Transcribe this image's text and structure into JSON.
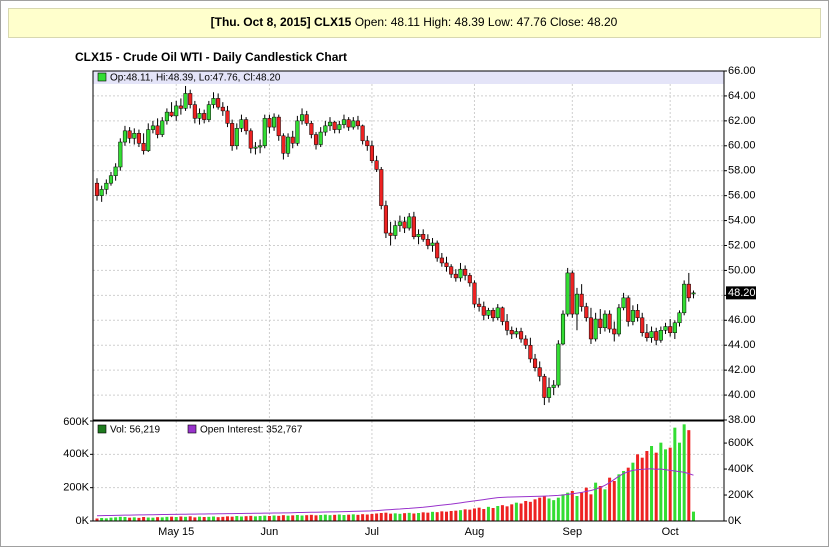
{
  "header": {
    "date_symbol": "[Thu. Oct 8, 2015] CLX15",
    "quote": "Open: 48.11 High: 48.39 Low: 47.76 Close: 48.20"
  },
  "chart_data": [
    {
      "type": "candlestick",
      "title": "CLX15 - Crude Oil WTI - Daily Candlestick Chart",
      "legend": "Op:48.11, Hi:48.39, Lo:47.76, Cl:48.20",
      "up_color": "#33dd33",
      "down_color": "#ee2222",
      "open": [
        57.0,
        56.0,
        56.5,
        57.0,
        57.6,
        58.3,
        60.3,
        61.2,
        60.6,
        61.0,
        60.2,
        59.6,
        61.3,
        61.6,
        60.9,
        62.0,
        62.7,
        62.4,
        63.2,
        63.0,
        64.2,
        63.3,
        62.2,
        62.6,
        62.1,
        63.3,
        63.8,
        63.1,
        62.8,
        61.8,
        60.0,
        61.4,
        62.1,
        61.2,
        59.8,
        59.9,
        60.0,
        62.2,
        61.5,
        62.3,
        60.8,
        59.4,
        60.7,
        60.2,
        62.0,
        62.5,
        61.8,
        60.9,
        60.1,
        61.1,
        61.6,
        61.9,
        61.3,
        61.7,
        62.1,
        61.5,
        62.0,
        61.6,
        60.4,
        60.0,
        58.8,
        58.1,
        55.2,
        53.0,
        52.8,
        53.6,
        53.9,
        53.4,
        54.3,
        52.7,
        52.9,
        52.5,
        52.0,
        52.2,
        51.0,
        50.6,
        50.3,
        49.7,
        49.4,
        50.1,
        49.6,
        49.0,
        47.3,
        47.1,
        46.4,
        46.8,
        46.2,
        47.0,
        45.9,
        45.2,
        44.9,
        45.1,
        44.5,
        44.0,
        42.9,
        42.2,
        41.5,
        39.8,
        40.6,
        40.8,
        44.1,
        46.5,
        49.8,
        46.5,
        48.1,
        47.1,
        46.2,
        44.5,
        46.1,
        45.4,
        46.5,
        45.3,
        44.9,
        47.0,
        47.8,
        45.9,
        46.8,
        46.2,
        45.0,
        44.6,
        45.1,
        44.4,
        45.2,
        45.5,
        45.0,
        45.8,
        46.6,
        48.9,
        48.11
      ],
      "high": [
        57.4,
        56.8,
        57.3,
        57.9,
        58.6,
        60.6,
        61.6,
        61.5,
        61.4,
        61.3,
        61.0,
        61.8,
        62.0,
        62.2,
        62.3,
        63.0,
        63.5,
        63.6,
        63.8,
        64.8,
        64.5,
        63.6,
        63.0,
        62.9,
        63.6,
        64.3,
        64.2,
        63.5,
        63.2,
        62.1,
        61.8,
        62.5,
        62.3,
        61.4,
        60.3,
        60.5,
        62.5,
        62.5,
        62.6,
        62.5,
        61.0,
        61.0,
        61.2,
        62.4,
        63.0,
        62.8,
        62.0,
        61.1,
        61.5,
        62.0,
        62.3,
        62.0,
        62.0,
        62.5,
        62.3,
        62.3,
        62.4,
        61.7,
        60.8,
        60.4,
        59.2,
        58.3,
        55.6,
        53.9,
        54.0,
        54.4,
        54.3,
        54.6,
        54.7,
        53.3,
        53.3,
        52.9,
        52.6,
        52.4,
        51.4,
        51.1,
        50.5,
        50.1,
        50.6,
        50.4,
        49.8,
        49.2,
        47.8,
        47.5,
        47.0,
        47.0,
        47.3,
        47.1,
        46.5,
        45.5,
        45.4,
        45.4,
        44.8,
        44.6,
        43.3,
        42.7,
        41.7,
        41.4,
        41.2,
        44.4,
        46.8,
        50.2,
        50.0,
        48.6,
        48.9,
        47.4,
        47.0,
        46.6,
        46.9,
        46.8,
        46.8,
        45.9,
        47.3,
        48.2,
        48.0,
        47.2,
        47.3,
        46.6,
        45.7,
        45.5,
        45.4,
        45.5,
        45.8,
        46.1,
        46.0,
        46.8,
        49.2,
        49.8,
        48.39
      ],
      "low": [
        55.6,
        55.5,
        56.1,
        56.8,
        57.2,
        58.0,
        60.0,
        60.2,
        60.1,
        59.9,
        59.3,
        59.5,
        61.0,
        60.6,
        60.7,
        61.7,
        62.3,
        62.0,
        62.5,
        62.8,
        63.0,
        61.8,
        61.7,
        61.8,
        61.9,
        63.0,
        62.9,
        62.4,
        61.5,
        59.6,
        59.7,
        61.1,
        60.9,
        59.4,
        59.3,
        59.4,
        59.8,
        61.0,
        61.2,
        60.4,
        58.9,
        59.1,
        59.8,
        60.0,
        61.7,
        61.6,
        60.6,
        59.7,
        59.9,
        60.8,
        61.2,
        61.0,
        61.0,
        61.4,
        61.2,
        61.3,
        61.3,
        60.1,
        59.6,
        58.6,
        57.9,
        54.9,
        52.6,
        52.0,
        52.5,
        53.1,
        53.0,
        53.2,
        52.5,
        52.1,
        52.3,
        51.7,
        51.5,
        50.7,
        50.3,
        49.9,
        49.4,
        49.1,
        49.1,
        49.2,
        48.7,
        47.0,
        46.7,
        46.0,
        46.1,
        45.9,
        46.0,
        45.6,
        44.8,
        44.5,
        44.6,
        44.2,
        43.7,
        42.6,
        41.9,
        41.1,
        39.2,
        39.4,
        40.0,
        40.6,
        44.0,
        46.3,
        46.2,
        45.2,
        46.7,
        45.9,
        44.1,
        44.3,
        44.9,
        45.1,
        45.0,
        44.3,
        44.7,
        46.8,
        45.5,
        45.6,
        45.9,
        44.7,
        44.3,
        44.2,
        44.0,
        44.2,
        44.9,
        44.7,
        44.5,
        45.5,
        46.4,
        47.5,
        47.76
      ],
      "close": [
        56.0,
        56.5,
        57.0,
        57.6,
        58.3,
        60.3,
        61.2,
        60.6,
        61.0,
        60.2,
        59.6,
        61.3,
        61.6,
        60.9,
        62.0,
        62.7,
        62.4,
        63.2,
        63.0,
        64.2,
        63.3,
        62.2,
        62.6,
        62.1,
        63.3,
        63.8,
        63.1,
        62.8,
        61.8,
        60.0,
        61.4,
        62.1,
        61.2,
        59.8,
        59.9,
        60.0,
        62.2,
        61.5,
        62.3,
        60.8,
        59.4,
        60.7,
        60.2,
        62.0,
        62.5,
        61.8,
        60.9,
        60.1,
        61.1,
        61.6,
        61.9,
        61.3,
        61.7,
        62.1,
        61.5,
        62.0,
        61.6,
        60.4,
        60.0,
        58.8,
        58.1,
        55.2,
        53.0,
        52.8,
        53.6,
        53.9,
        53.4,
        54.3,
        52.7,
        52.9,
        52.5,
        52.0,
        52.2,
        51.0,
        50.6,
        50.3,
        49.7,
        49.4,
        50.1,
        49.6,
        49.0,
        47.3,
        47.1,
        46.4,
        46.8,
        46.2,
        47.0,
        45.9,
        45.2,
        44.9,
        45.1,
        44.5,
        44.0,
        42.9,
        42.2,
        41.5,
        39.8,
        40.6,
        40.8,
        44.1,
        46.5,
        49.8,
        46.5,
        48.1,
        47.1,
        46.2,
        44.5,
        46.1,
        45.4,
        46.5,
        45.3,
        44.9,
        47.0,
        47.8,
        45.9,
        46.8,
        46.2,
        45.0,
        44.6,
        45.1,
        44.4,
        45.2,
        45.5,
        45.0,
        45.8,
        46.6,
        48.9,
        47.8,
        48.2
      ],
      "ylim": [
        38,
        66
      ],
      "yticks": [
        {
          "value": 38,
          "label": "38.00"
        },
        {
          "value": 40,
          "label": "40.00"
        },
        {
          "value": 42,
          "label": "42.00"
        },
        {
          "value": 44,
          "label": "44.00"
        },
        {
          "value": 46,
          "label": "46.00"
        },
        {
          "value": 48,
          "label": "48.00"
        },
        {
          "value": 50,
          "label": "50.00"
        },
        {
          "value": 52,
          "label": "52.00"
        },
        {
          "value": 54,
          "label": "54.00"
        },
        {
          "value": 56,
          "label": "56.00"
        },
        {
          "value": 58,
          "label": "58.00"
        },
        {
          "value": 60,
          "label": "60.00"
        },
        {
          "value": 62,
          "label": "62.00"
        },
        {
          "value": 64,
          "label": "64.00"
        },
        {
          "value": 66,
          "label": "66.00"
        }
      ],
      "last_label": {
        "value": 48.2,
        "label": "48.20"
      },
      "grid": true
    },
    {
      "type": "bar",
      "categories": [
        null,
        null,
        null,
        null,
        null,
        null,
        null,
        null,
        null,
        null,
        null,
        null,
        null,
        null,
        null,
        null,
        null,
        "May 15",
        null,
        null,
        null,
        null,
        null,
        null,
        null,
        null,
        null,
        null,
        null,
        null,
        null,
        null,
        null,
        null,
        null,
        null,
        null,
        "Jun",
        null,
        null,
        null,
        null,
        null,
        null,
        null,
        null,
        null,
        null,
        null,
        null,
        null,
        null,
        null,
        null,
        null,
        null,
        null,
        null,
        null,
        "Jul",
        null,
        null,
        null,
        null,
        null,
        null,
        null,
        null,
        null,
        null,
        null,
        null,
        null,
        null,
        null,
        null,
        null,
        null,
        null,
        null,
        null,
        "Aug",
        null,
        null,
        null,
        null,
        null,
        null,
        null,
        null,
        null,
        null,
        null,
        null,
        null,
        null,
        null,
        null,
        null,
        null,
        null,
        null,
        "Sep",
        null,
        null,
        null,
        null,
        null,
        null,
        null,
        null,
        null,
        null,
        null,
        null,
        null,
        null,
        null,
        null,
        null,
        null,
        null,
        null,
        "Oct",
        null,
        null,
        null,
        null,
        null
      ],
      "series": [
        {
          "name": "Vol: 56,219",
          "color": "#1e7b1e",
          "values": [
            15000,
            18000,
            16000,
            20000,
            22000,
            25000,
            24000,
            20000,
            22000,
            19000,
            24000,
            21000,
            20000,
            23000,
            22000,
            25000,
            26000,
            24000,
            27000,
            25000,
            28000,
            22000,
            26000,
            24000,
            25000,
            27000,
            23000,
            25000,
            28000,
            26000,
            30000,
            27000,
            29000,
            31000,
            28000,
            30000,
            32000,
            30000,
            33000,
            31000,
            35000,
            32000,
            34000,
            36000,
            33000,
            35000,
            37000,
            34000,
            36000,
            38000,
            35000,
            37000,
            39000,
            36000,
            38000,
            40000,
            37000,
            41000,
            39000,
            42000,
            45000,
            48000,
            50000,
            44000,
            46000,
            43000,
            47000,
            49000,
            45000,
            48000,
            52000,
            50000,
            55000,
            53000,
            58000,
            56000,
            60000,
            62000,
            65000,
            70000,
            68000,
            75000,
            80000,
            72000,
            85000,
            78000,
            90000,
            95000,
            88000,
            100000,
            110000,
            105000,
            120000,
            115000,
            130000,
            140000,
            150000,
            135000,
            125000,
            140000,
            160000,
            170000,
            180000,
            150000,
            170000,
            200000,
            160000,
            230000,
            210000,
            190000,
            260000,
            240000,
            280000,
            300000,
            320000,
            350000,
            400000,
            380000,
            420000,
            450000,
            410000,
            470000,
            430000,
            440000,
            560000,
            470000,
            580000,
            545000,
            56219
          ]
        },
        {
          "name": "Open Interest: 352,767",
          "color": "#9933cc",
          "axis": "y2",
          "values": [
            40000,
            41000,
            42000,
            42000,
            43000,
            44000,
            45000,
            45000,
            46000,
            47000,
            47000,
            48000,
            48000,
            49000,
            50000,
            50000,
            51000,
            51000,
            52000,
            52000,
            53000,
            53000,
            54000,
            54000,
            55000,
            55000,
            56000,
            56000,
            57000,
            57000,
            58000,
            58000,
            59000,
            59000,
            60000,
            60000,
            61000,
            61000,
            62000,
            62000,
            63000,
            63000,
            64000,
            65000,
            65000,
            66000,
            67000,
            67000,
            68000,
            69000,
            70000,
            70000,
            71000,
            72000,
            73000,
            74000,
            75000,
            76000,
            77000,
            78000,
            80000,
            83000,
            86000,
            88000,
            90000,
            92000,
            95000,
            97000,
            100000,
            103000,
            106000,
            110000,
            114000,
            118000,
            122000,
            126000,
            130000,
            135000,
            140000,
            145000,
            150000,
            155000,
            160000,
            165000,
            170000,
            175000,
            180000,
            182000,
            184000,
            185000,
            186000,
            187000,
            188000,
            189000,
            190000,
            191000,
            192000,
            193000,
            195000,
            197000,
            200000,
            205000,
            210000,
            215000,
            220000,
            228000,
            235000,
            245000,
            258000,
            275000,
            295000,
            320000,
            345000,
            365000,
            380000,
            390000,
            395000,
            398000,
            400000,
            402000,
            398000,
            400000,
            395000,
            390000,
            385000,
            380000,
            375000,
            365000,
            352767
          ]
        }
      ],
      "ylim": [
        0,
        600000
      ],
      "yticks": [
        {
          "value": 0,
          "label": "0K"
        },
        {
          "value": 200000,
          "label": "200K"
        },
        {
          "value": 400000,
          "label": "400K"
        },
        {
          "value": 600000,
          "label": "600K"
        }
      ],
      "y2lim": [
        0,
        770000
      ],
      "y2ticks": [
        {
          "value": 0,
          "label": "0K"
        },
        {
          "value": 200000,
          "label": "200K"
        },
        {
          "value": 400000,
          "label": "400K"
        },
        {
          "value": 600000,
          "label": "600K"
        }
      ],
      "grid": true
    }
  ]
}
